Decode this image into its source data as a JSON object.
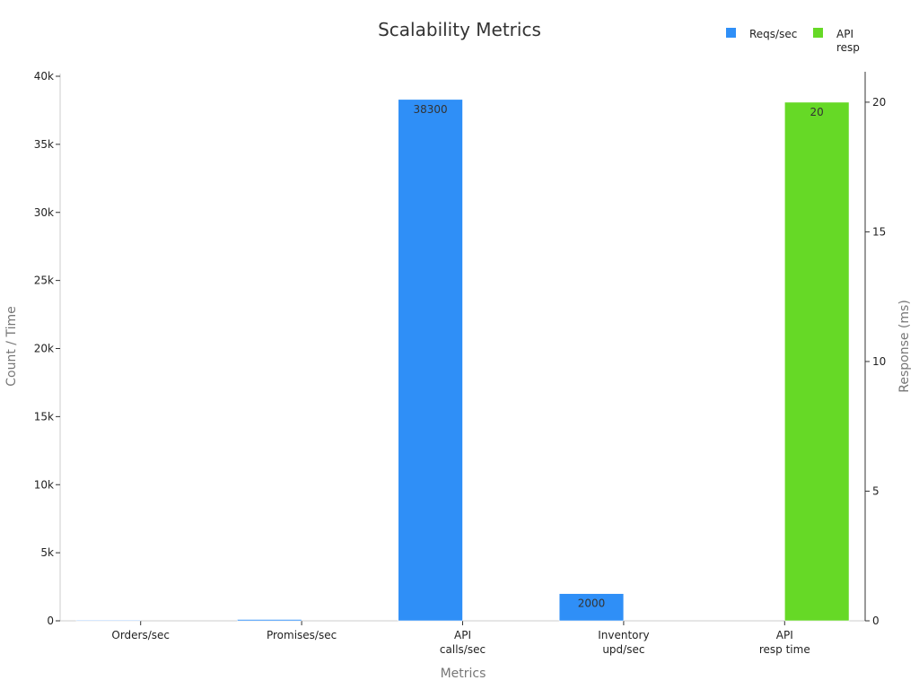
{
  "chart_data": {
    "type": "bar",
    "title": "Scalability Metrics",
    "xlabel": "Metrics",
    "ylabel": "Count / Time",
    "y2label": "Response (ms)",
    "ylim": [
      0,
      40000
    ],
    "y2lim": [
      0,
      21
    ],
    "yticks": [
      0,
      5000,
      10000,
      15000,
      20000,
      25000,
      30000,
      35000,
      40000
    ],
    "yticklabels": [
      "0",
      "5k",
      "10k",
      "15k",
      "20k",
      "25k",
      "30k",
      "35k",
      "40k"
    ],
    "y2ticks": [
      0,
      5,
      10,
      15,
      20
    ],
    "y2ticklabels": [
      "0",
      "5",
      "10",
      "15",
      "20"
    ],
    "categories": [
      [
        "Orders/sec"
      ],
      [
        "Promises/sec"
      ],
      [
        "API",
        "calls/sec"
      ],
      [
        "Inventory",
        "upd/sec"
      ],
      [
        "API",
        "resp time"
      ]
    ],
    "series": [
      {
        "name": "Reqs/sec",
        "axis": "left",
        "color": "#2f8ff7",
        "values": [
          10,
          100,
          38300,
          2000,
          null
        ],
        "labels": [
          "",
          "",
          "38300",
          "2000",
          ""
        ]
      },
      {
        "name": "API resp",
        "legend_lines": [
          "API",
          "resp"
        ],
        "axis": "right",
        "color": "#66d926",
        "values": [
          null,
          null,
          null,
          null,
          20
        ],
        "labels": [
          "",
          "",
          "",
          "",
          "20"
        ]
      }
    ],
    "grid": false,
    "legend_position": "top-right"
  }
}
